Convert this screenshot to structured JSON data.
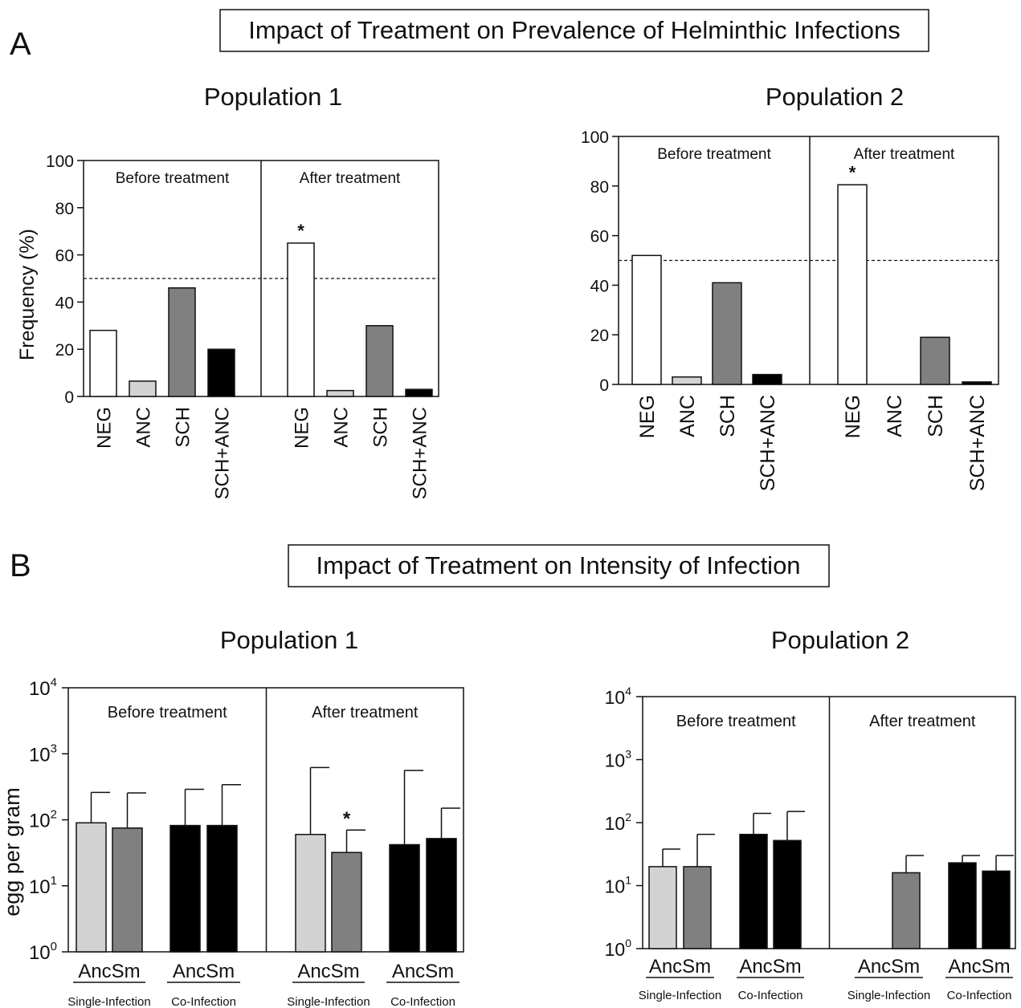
{
  "panel_a": {
    "letter": "A",
    "title": "Impact of Treatment on Prevalence of Helminthic Infections"
  },
  "panel_b": {
    "letter": "B",
    "title": "Impact of Treatment on Intensity of  Infection"
  },
  "colors": {
    "NEG": "#ffffff",
    "ANC": "#d3d3d3",
    "SCH": "#808080",
    "SCH+ANC": "#000000",
    "Anc": "#d3d3d3",
    "Sm": "#808080",
    "co": "#000000"
  },
  "chart_data": [
    {
      "id": "a1",
      "type": "bar",
      "title": "Population 1",
      "ylabel": "Frequency (%)",
      "ylim": [
        0,
        100
      ],
      "yticks": [
        "0",
        "20",
        "40",
        "60",
        "80",
        "100"
      ],
      "reference_line": 50,
      "groups": [
        {
          "label": "Before treatment",
          "categories": [
            "NEG",
            "ANC",
            "SCH",
            "SCH+ANC"
          ],
          "values": [
            28,
            6.5,
            46,
            20
          ],
          "stars": [
            false,
            false,
            false,
            false
          ]
        },
        {
          "label": "After treatment",
          "categories": [
            "NEG",
            "ANC",
            "SCH",
            "SCH+ANC"
          ],
          "values": [
            65,
            2.5,
            30,
            3
          ],
          "stars": [
            true,
            false,
            false,
            false
          ]
        }
      ],
      "star_symbol": "*"
    },
    {
      "id": "a2",
      "type": "bar",
      "title": "Population 2",
      "ylabel": "",
      "ylim": [
        0,
        100
      ],
      "yticks": [
        "0",
        "20",
        "40",
        "60",
        "80",
        "100"
      ],
      "reference_line": 50,
      "groups": [
        {
          "label": "Before treatment",
          "categories": [
            "NEG",
            "ANC",
            "SCH",
            "SCH+ANC"
          ],
          "values": [
            52,
            3,
            41,
            4
          ],
          "stars": [
            false,
            false,
            false,
            false
          ]
        },
        {
          "label": "After treatment",
          "categories": [
            "NEG",
            "ANC",
            "SCH",
            "SCH+ANC"
          ],
          "values": [
            80.5,
            0,
            19,
            1
          ],
          "stars": [
            true,
            false,
            false,
            false
          ]
        }
      ],
      "star_symbol": "*"
    },
    {
      "id": "b1",
      "type": "bar",
      "scale": "log",
      "title": "Population 1",
      "ylabel": "egg per gram",
      "ylim": [
        1,
        10000
      ],
      "ytick_base": "10",
      "ytick_exponents": [
        "0",
        "1",
        "2",
        "3",
        "4"
      ],
      "groups": [
        {
          "label": "Before treatment",
          "subgroups": [
            {
              "label": "AncSm",
              "sublabel": "Single-Infection",
              "bars": [
                {
                  "series": "Anc",
                  "value": 90,
                  "error": 260,
                  "star": false
                },
                {
                  "series": "Sm",
                  "value": 75,
                  "error": 255,
                  "star": false
                }
              ]
            },
            {
              "label": "AncSm",
              "sublabel": "Co-Infection",
              "bars": [
                {
                  "series": "co",
                  "value": 82,
                  "error": 290,
                  "star": false
                },
                {
                  "series": "co",
                  "value": 82,
                  "error": 340,
                  "star": false
                }
              ]
            }
          ]
        },
        {
          "label": "After treatment",
          "subgroups": [
            {
              "label": "AncSm",
              "sublabel": "Single-Infection",
              "bars": [
                {
                  "series": "Anc",
                  "value": 60,
                  "error": 620,
                  "star": false
                },
                {
                  "series": "Sm",
                  "value": 32,
                  "error": 70,
                  "star": true
                }
              ]
            },
            {
              "label": "AncSm",
              "sublabel": "Co-Infection",
              "bars": [
                {
                  "series": "co",
                  "value": 42,
                  "error": 560,
                  "star": false
                },
                {
                  "series": "co",
                  "value": 52,
                  "error": 150,
                  "star": false
                }
              ]
            }
          ]
        }
      ],
      "star_symbol": "*"
    },
    {
      "id": "b2",
      "type": "bar",
      "scale": "log",
      "title": "Population 2",
      "ylabel": "",
      "ylim": [
        1,
        10000
      ],
      "ytick_base": "10",
      "ytick_exponents": [
        "0",
        "1",
        "2",
        "3",
        "4"
      ],
      "groups": [
        {
          "label": "Before treatment",
          "subgroups": [
            {
              "label": "AncSm",
              "sublabel": "Single-Infection",
              "bars": [
                {
                  "series": "Anc",
                  "value": 20,
                  "error": 38,
                  "star": false
                },
                {
                  "series": "Sm",
                  "value": 20,
                  "error": 65,
                  "star": false
                }
              ]
            },
            {
              "label": "AncSm",
              "sublabel": "Co-Infection",
              "bars": [
                {
                  "series": "co",
                  "value": 65,
                  "error": 140,
                  "star": false
                },
                {
                  "series": "co",
                  "value": 52,
                  "error": 150,
                  "star": false
                }
              ]
            }
          ]
        },
        {
          "label": "After treatment",
          "subgroups": [
            {
              "label": "AncSm",
              "sublabel": "Single-Infection",
              "bars": [
                {
                  "series": "Anc",
                  "value": 0,
                  "error": 0,
                  "star": false
                },
                {
                  "series": "Sm",
                  "value": 16,
                  "error": 30,
                  "star": false
                }
              ]
            },
            {
              "label": "AncSm",
              "sublabel": "Co-Infection",
              "bars": [
                {
                  "series": "co",
                  "value": 23,
                  "error": 30,
                  "star": false
                },
                {
                  "series": "co",
                  "value": 17,
                  "error": 30,
                  "star": false
                }
              ]
            }
          ]
        }
      ],
      "star_symbol": "*"
    }
  ]
}
